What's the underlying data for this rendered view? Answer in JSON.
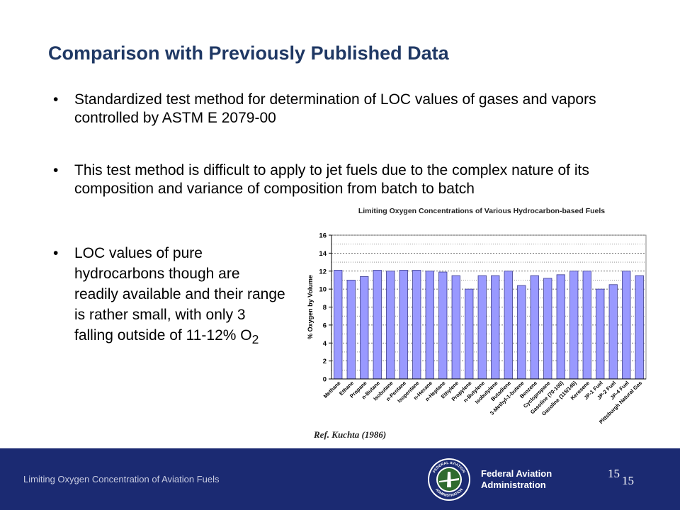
{
  "slide": {
    "title": "Comparison with Previously Published Data",
    "bullets": [
      "Standardized test method for determination of LOC values of gases and vapors controlled by ASTM E 2079-00",
      "This test method is difficult to apply to jet fuels due to the complex nature of its composition and variance of composition from batch to batch",
      "LOC values of pure hydrocarbons though are readily available and their range is rather small, with only 3 falling outside of 11-12% O"
    ],
    "bullet_symbol": "•",
    "subscript": "2",
    "reference": "Ref. Kuchta (1986)"
  },
  "footer": {
    "text": "Limiting Oxygen Concentration of Aviation Fuels",
    "agency_line1": "Federal Aviation",
    "agency_line2": "Administration",
    "page_number": "15",
    "page_number_2": "15",
    "seal_top": "FEDERAL AVIATION",
    "seal_bottom": "ADMINISTRATION"
  },
  "colors": {
    "title": "#1f3864",
    "bar_fill": "#9999ff",
    "bar_stroke": "#3d3d8f",
    "footer_bg": "#1b2a72"
  },
  "chart_data": {
    "type": "bar",
    "title": "Limiting Oxygen Concentrations of Various Hydrocarbon-based Fuels",
    "ylabel": "% Oxygen by Volume",
    "xlabel": "",
    "ylim": [
      0,
      16
    ],
    "yticks": [
      0,
      2,
      4,
      6,
      8,
      10,
      12,
      14,
      16
    ],
    "grid": true,
    "categories": [
      "Methane",
      "Ethane",
      "Propane",
      "n-Butane",
      "Isobutane",
      "n-Pentane",
      "Isopentane",
      "n-Hexane",
      "n-Heptane",
      "Ethylene",
      "Propylene",
      "n-Butylene",
      "Isobutylene",
      "Butadiene",
      "3-Methyl-1-butene",
      "Benzene",
      "Cyclopropane",
      "Gasoline (70-100)",
      "Gasoline (115/145)",
      "Kerosene",
      "JP-1 Fuel",
      "JP-2 Fuel",
      "JP-4 Fuel",
      "Pittsburgh Natural Gas"
    ],
    "values": [
      12.1,
      11.0,
      11.4,
      12.1,
      12.0,
      12.1,
      12.1,
      12.0,
      11.9,
      11.5,
      10.0,
      11.5,
      11.5,
      12.0,
      10.4,
      11.5,
      11.2,
      11.6,
      12.0,
      12.0,
      10.0,
      10.5,
      12.0,
      11.5
    ]
  }
}
